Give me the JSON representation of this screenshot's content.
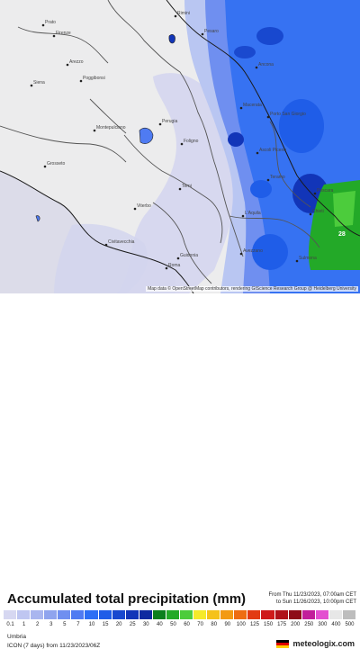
{
  "title": "Accumulated total precipitation (mm)",
  "date_from": "From Thu 11/23/2023, 07:00am CET",
  "date_to": "to Sun 11/26/2023, 10:00pm CET",
  "region": "Umbria",
  "model_info": "ICON (7 days) from 11/23/2023/06Z",
  "brand": "meteologix.com",
  "attribution": "Map data © OpenStreetMap contributors, rendering GIScience Research Group @ Heidelberg University",
  "legend": {
    "ticks": [
      "0.1",
      "1",
      "2",
      "3",
      "5",
      "7",
      "10",
      "15",
      "20",
      "25",
      "30",
      "40",
      "50",
      "60",
      "70",
      "80",
      "90",
      "100",
      "125",
      "150",
      "175",
      "200",
      "250",
      "300",
      "400",
      "500"
    ],
    "colors": [
      "#d6d7f1",
      "#bfc6f1",
      "#a9b6ef",
      "#8fa4ee",
      "#6f8ff0",
      "#4f7bf2",
      "#2c6ef5",
      "#1f5de8",
      "#1848cf",
      "#1235b8",
      "#0f2aa0",
      "#0c7f1e",
      "#23a928",
      "#4ccc3c",
      "#f5ea2a",
      "#f5c21a",
      "#f39a13",
      "#ee6d12",
      "#e23a12",
      "#cf1a1a",
      "#b0121a",
      "#8e0c18",
      "#c21e9a",
      "#e34fd0",
      "#e7e7e7",
      "#bdbdbd"
    ]
  },
  "places": [
    {
      "name": "Rimini",
      "icon": "city-dot"
    },
    {
      "name": "Pesaro",
      "icon": "city-dot"
    },
    {
      "name": "Ancona",
      "icon": "city-dot"
    },
    {
      "name": "Arezzo",
      "icon": "city-dot"
    },
    {
      "name": "Perugia",
      "icon": "city-dot"
    },
    {
      "name": "Foligno",
      "icon": "city-dot"
    },
    {
      "name": "Macerata",
      "icon": "city-dot"
    },
    {
      "name": "Porto San Giorgio",
      "icon": "city-dot"
    },
    {
      "name": "Ascoli Piceno",
      "icon": "city-dot"
    },
    {
      "name": "Teramo",
      "icon": "city-dot"
    },
    {
      "name": "Pescara",
      "icon": "city-dot"
    },
    {
      "name": "Chieti",
      "icon": "city-dot"
    },
    {
      "name": "L'Aquila",
      "icon": "city-dot"
    },
    {
      "name": "Sulmona",
      "icon": "city-dot"
    },
    {
      "name": "Avezzano",
      "icon": "city-dot"
    },
    {
      "name": "Terni",
      "icon": "city-dot"
    },
    {
      "name": "Viterbo",
      "icon": "city-dot"
    },
    {
      "name": "Grosseto",
      "icon": "city-dot"
    },
    {
      "name": "Civitavecchia",
      "icon": "city-dot"
    },
    {
      "name": "Guidonia",
      "icon": "city-dot"
    },
    {
      "name": "Roma",
      "icon": "city-dot"
    },
    {
      "name": "Siena",
      "icon": "city-dot"
    },
    {
      "name": "Montepulciano",
      "icon": "city-dot"
    },
    {
      "name": "Firenze",
      "icon": "city-dot"
    },
    {
      "name": "Poggibonsi",
      "icon": "city-dot"
    },
    {
      "name": "Prato",
      "icon": "city-dot"
    }
  ],
  "value_marker": "28"
}
